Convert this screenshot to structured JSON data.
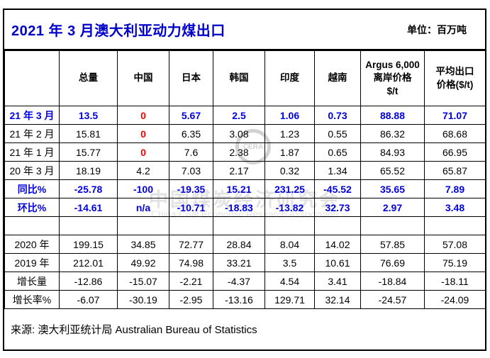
{
  "header": {
    "title": "2021 年 3 月澳大利亚动力煤出口",
    "unit_label": "单位：百万吨"
  },
  "watermark": {
    "emblem": "CERA",
    "line1": "中国煤炭经济研究会",
    "line2": "China Coal Economic Research Association"
  },
  "source": "来源: 澳大利亚统计局  Australian Bureau of Statistics",
  "colors": {
    "title_blue": "#0000cc",
    "data_blue": "#0000e0",
    "alert_red": "#ff0000",
    "text_black": "#000000"
  },
  "chart_data": {
    "type": "table",
    "title": "2021 年 3 月澳大利亚动力煤出口",
    "unit": "百万吨",
    "columns": [
      "总量",
      "中国",
      "日本",
      "韩国",
      "印度",
      "越南",
      "Argus 6,000\n离岸价格\n$/t",
      "平均出口\n价格($/t)"
    ],
    "rows": [
      {
        "label": "21 年 3 月",
        "label_color": "blue",
        "values": [
          "13.5",
          "0",
          "5.67",
          "2.5",
          "1.06",
          "0.73",
          "88.88",
          "71.07"
        ],
        "colors": [
          "blue",
          "red",
          "blue",
          "blue",
          "blue",
          "blue",
          "blue",
          "blue"
        ]
      },
      {
        "label": "21 年 2 月",
        "label_color": "black",
        "values": [
          "15.81",
          "0",
          "6.35",
          "3.08",
          "1.23",
          "0.55",
          "86.32",
          "68.68"
        ],
        "colors": [
          "black",
          "red",
          "black",
          "black",
          "black",
          "black",
          "black",
          "black"
        ]
      },
      {
        "label": "21 年 1 月",
        "label_color": "black",
        "values": [
          "15.77",
          "0",
          "7.6",
          "2.38",
          "1.87",
          "0.65",
          "84.93",
          "66.95"
        ],
        "colors": [
          "black",
          "red",
          "black",
          "black",
          "black",
          "black",
          "black",
          "black"
        ]
      },
      {
        "label": "20 年 3 月",
        "label_color": "black",
        "values": [
          "18.19",
          "4.2",
          "7.03",
          "2.17",
          "0.32",
          "1.34",
          "65.52",
          "65.87"
        ],
        "colors": [
          "black",
          "black",
          "black",
          "black",
          "black",
          "black",
          "black",
          "black"
        ]
      },
      {
        "label": "同比%",
        "label_color": "blue",
        "values": [
          "-25.78",
          "-100",
          "-19.35",
          "15.21",
          "231.25",
          "-45.52",
          "35.65",
          "7.89"
        ],
        "colors": [
          "blue",
          "blue",
          "blue",
          "blue",
          "blue",
          "blue",
          "blue",
          "blue"
        ]
      },
      {
        "label": "环比%",
        "label_color": "blue",
        "values": [
          "-14.61",
          "n/a",
          "-10.71",
          "-18.83",
          "-13.82",
          "32.73",
          "2.97",
          "3.48"
        ],
        "colors": [
          "blue",
          "blue",
          "blue",
          "blue",
          "blue",
          "blue",
          "blue",
          "blue"
        ]
      },
      {
        "label": "",
        "label_color": "black",
        "values": [
          "",
          "",
          "",
          "",
          "",
          "",
          "",
          ""
        ],
        "colors": [
          "black",
          "black",
          "black",
          "black",
          "black",
          "black",
          "black",
          "black"
        ]
      },
      {
        "label": "2020 年",
        "label_color": "black",
        "values": [
          "199.15",
          "34.85",
          "72.77",
          "28.84",
          "8.04",
          "14.02",
          "57.85",
          "57.08"
        ],
        "colors": [
          "black",
          "black",
          "black",
          "black",
          "black",
          "black",
          "black",
          "black"
        ]
      },
      {
        "label": "2019 年",
        "label_color": "black",
        "values": [
          "212.01",
          "49.92",
          "74.98",
          "33.21",
          "3.5",
          "10.61",
          "76.69",
          "75.19"
        ],
        "colors": [
          "black",
          "black",
          "black",
          "black",
          "black",
          "black",
          "black",
          "black"
        ]
      },
      {
        "label": "增长量",
        "label_color": "black",
        "values": [
          "-12.86",
          "-15.07",
          "-2.21",
          "-4.37",
          "4.54",
          "3.41",
          "-18.84",
          "-18.11"
        ],
        "colors": [
          "black",
          "black",
          "black",
          "black",
          "black",
          "black",
          "black",
          "black"
        ]
      },
      {
        "label": "增长率%",
        "label_color": "black",
        "values": [
          "-6.07",
          "-30.19",
          "-2.95",
          "-13.16",
          "129.71",
          "32.14",
          "-24.57",
          "-24.09"
        ],
        "colors": [
          "black",
          "black",
          "black",
          "black",
          "black",
          "black",
          "black",
          "black"
        ]
      }
    ]
  }
}
